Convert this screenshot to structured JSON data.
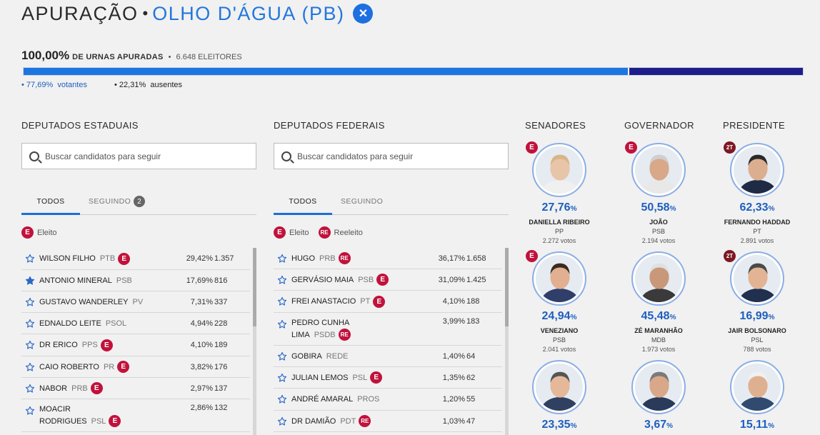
{
  "header": {
    "title": "APURAÇÃO",
    "separator": "•",
    "city": "OLHO D'ÁGUA (PB)",
    "close": "✕"
  },
  "summary": {
    "percent": "100,00%",
    "label": "DE URNAS APURADAS",
    "separator": "•",
    "voters": "6.648 ELEITORES"
  },
  "turnout": {
    "voters_fraction": 0.7769,
    "voters_pct": "77,69%",
    "voters_label": "votantes",
    "absent_pct": "22,31%",
    "absent_label": "ausentes",
    "voters_color": "#1d76e0",
    "absent_color": "#1e1e8a"
  },
  "estaduais": {
    "title": "DEPUTADOS ESTADUAIS",
    "search_placeholder": "Buscar candidatos para seguir",
    "tabs": [
      {
        "label": "TODOS"
      },
      {
        "label": "SEGUINDO",
        "count": "2"
      }
    ],
    "legend": {
      "badge": "E",
      "label": "Eleito"
    },
    "rows": [
      {
        "name": "WILSON FILHO",
        "party": "PTB",
        "badge": "E",
        "pct": "29,42%",
        "votes": "1.357"
      },
      {
        "name": "ANTONIO MINERAL",
        "party": "PSB",
        "badge": "",
        "pct": "17,69%",
        "votes": "816",
        "followed": true
      },
      {
        "name": "GUSTAVO WANDERLEY",
        "party": "PV",
        "badge": "",
        "pct": "7,31%",
        "votes": "337"
      },
      {
        "name": "EDNALDO LEITE",
        "party": "PSOL",
        "badge": "",
        "pct": "4,94%",
        "votes": "228"
      },
      {
        "name": "DR ERICO",
        "party": "PPS",
        "badge": "E",
        "pct": "4,10%",
        "votes": "189"
      },
      {
        "name": "CAIO ROBERTO",
        "party": "PR",
        "badge": "E",
        "pct": "3,82%",
        "votes": "176"
      },
      {
        "name": "NABOR",
        "party": "PRB",
        "badge": "E",
        "pct": "2,97%",
        "votes": "137"
      },
      {
        "name1": "MOACIR",
        "name2": "RODRIGUES",
        "party": "PSL",
        "badge": "E",
        "pct": "2,86%",
        "votes": "132"
      }
    ]
  },
  "federais": {
    "title": "DEPUTADOS FEDERAIS",
    "search_placeholder": "Buscar candidatos para seguir",
    "tabs": [
      {
        "label": "TODOS"
      },
      {
        "label": "SEGUINDO"
      }
    ],
    "legend": {
      "badge": "E",
      "label": "Eleito",
      "badge2": "RE",
      "label2": "Reeleito"
    },
    "rows": [
      {
        "name": "HUGO",
        "party": "PRB",
        "badge": "RE",
        "pct": "36,17%",
        "votes": "1.658"
      },
      {
        "name": "GERVÁSIO MAIA",
        "party": "PSB",
        "badge": "E",
        "pct": "31,09%",
        "votes": "1.425"
      },
      {
        "name": "FREI ANASTACIO",
        "party": "PT",
        "badge": "E",
        "pct": "4,10%",
        "votes": "188"
      },
      {
        "name1": "PEDRO CUNHA",
        "name2": "LIMA",
        "party": "PSDB",
        "badge": "RE",
        "pct": "3,99%",
        "votes": "183"
      },
      {
        "name": "GOBIRA",
        "party": "REDE",
        "badge": "",
        "pct": "1,40%",
        "votes": "64"
      },
      {
        "name": "JULIAN LEMOS",
        "party": "PSL",
        "badge": "E",
        "pct": "1,35%",
        "votes": "62"
      },
      {
        "name": "ANDRÉ AMARAL",
        "party": "PROS",
        "badge": "",
        "pct": "1,20%",
        "votes": "55"
      },
      {
        "name": "DR DAMIÃO",
        "party": "PDT",
        "badge": "RE",
        "pct": "1,03%",
        "votes": "47"
      }
    ]
  },
  "senadores": {
    "title": "SENADORES",
    "candidates": [
      {
        "badge": "E",
        "pct": "27,76",
        "unit": "%",
        "name": "DANIELLA RIBEIRO",
        "party": "PP",
        "votes": "2.272 votos",
        "skin": "#e8c4a8",
        "hair": "#d9b487",
        "shirt": "#f0f0f0"
      },
      {
        "badge": "E",
        "pct": "24,94",
        "unit": "%",
        "name": "VENEZIANO",
        "party": "PSB",
        "votes": "2.041 votos",
        "skin": "#e0b090",
        "hair": "#3a2a20",
        "shirt": "#2f3f6a"
      },
      {
        "badge": "",
        "pct": "23,35",
        "unit": "%",
        "name": "",
        "party": "",
        "votes": "",
        "skin": "#e4b898",
        "hair": "#555555",
        "shirt": "#304060"
      }
    ]
  },
  "governador": {
    "title": "GOVERNADOR",
    "candidates": [
      {
        "badge": "E",
        "pct": "50,58",
        "unit": "%",
        "name": "JOÃO",
        "party": "PSB",
        "votes": "2.194 votos",
        "skin": "#d8a888",
        "hair": "#cfcfcf",
        "shirt": "#e8e8e8"
      },
      {
        "badge": "",
        "pct": "45,48",
        "unit": "%",
        "name": "ZÉ MARANHÃO",
        "party": "MDB",
        "votes": "1.973 votos",
        "skin": "#c89878",
        "hair": "#e0e0e0",
        "shirt": "#3a3a3a"
      },
      {
        "badge": "",
        "pct": "3,67",
        "unit": "%",
        "name": "",
        "party": "",
        "votes": "",
        "skin": "#d8a888",
        "hair": "#7a7a7a",
        "shirt": "#2a3a5a"
      }
    ]
  },
  "presidente": {
    "title": "PRESIDENTE",
    "candidates": [
      {
        "badge": "2T",
        "pct": "62,33",
        "unit": "%",
        "name": "FERNANDO HADDAD",
        "party": "PT",
        "votes": "2.891 votos",
        "skin": "#dcae90",
        "hair": "#2a2a2a",
        "shirt": "#1f2a44"
      },
      {
        "badge": "2T",
        "pct": "16,99",
        "unit": "%",
        "name": "JAIR BOLSONARO",
        "party": "PSL",
        "votes": "788 votos",
        "skin": "#e2b494",
        "hair": "#4a4a4a",
        "shirt": "#20304e"
      },
      {
        "badge": "",
        "pct": "15,11",
        "unit": "%",
        "name": "",
        "party": "",
        "votes": "",
        "skin": "#deb090",
        "hair": "#f0f0f0",
        "shirt": "#304a70"
      }
    ]
  }
}
